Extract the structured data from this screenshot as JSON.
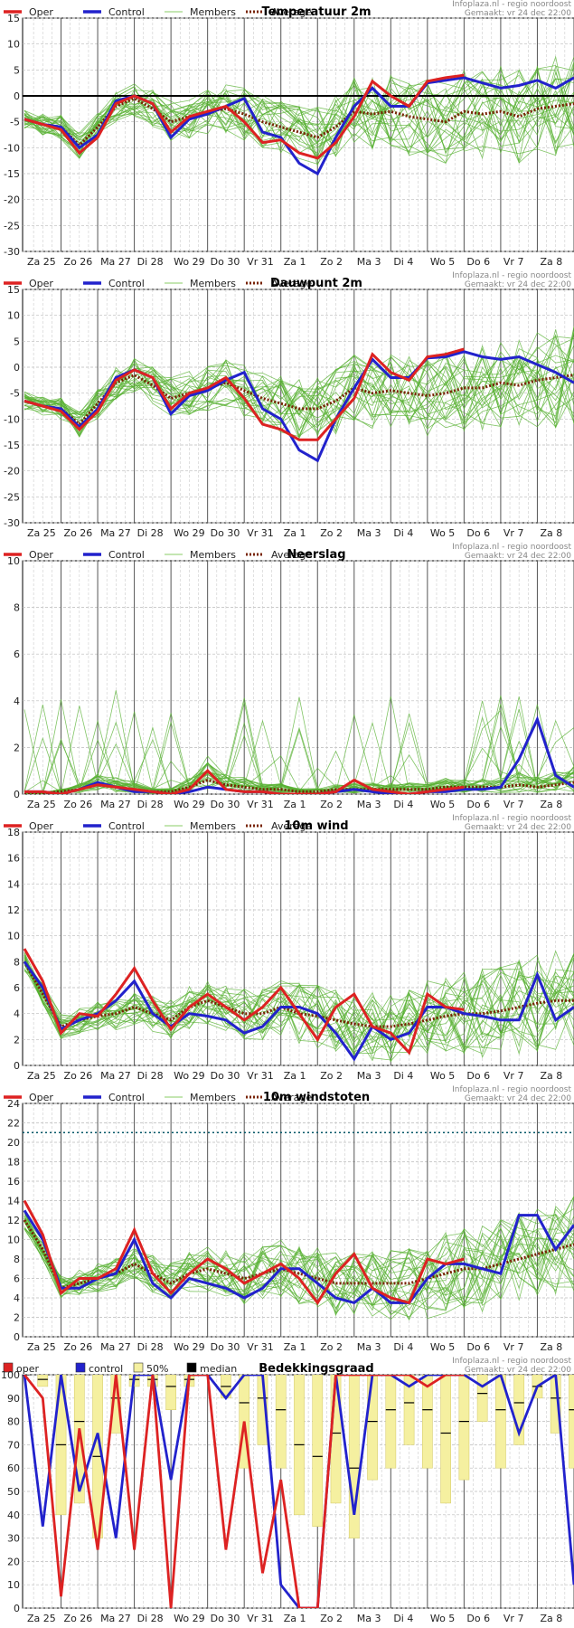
{
  "credits": {
    "source": "Infoplaza.nl - regio noordoost",
    "made": "Gemaakt: vr 24 dec 22:00"
  },
  "x_days": [
    "Za 25",
    "Zo 26",
    "Ma 27",
    "Di 28",
    "Wo 29",
    "Do 30",
    "Vr 31",
    "Za 1",
    "Zo 2",
    "Ma 3",
    "Di 4",
    "Wo 5",
    "Do 6",
    "Vr 7",
    "Za 8"
  ],
  "colors": {
    "oper": "#dd2222",
    "control": "#2222cc",
    "members": "#44aa22",
    "average": "#772200",
    "median": "#000000",
    "band": "#f5f0a0"
  },
  "legend_line": {
    "oper": "Oper",
    "control": "Control",
    "members": "Members",
    "average": "Average"
  },
  "legend_cloud": {
    "oper": "oper",
    "control": "control",
    "band": "50%",
    "median": "median"
  },
  "chart_data": [
    {
      "type": "line",
      "title": "Temperatuur 2m",
      "ylim": [
        -30,
        15
      ],
      "yticks": [
        15,
        10,
        5,
        0,
        -5,
        -10,
        -15,
        -20,
        -25,
        -30
      ],
      "zero_line": true,
      "grid": true,
      "x": [
        0,
        0.5,
        1,
        1.5,
        2,
        2.5,
        3,
        3.5,
        4,
        4.5,
        5,
        5.5,
        6,
        6.5,
        7,
        7.5,
        8,
        8.5,
        9,
        9.5,
        10,
        10.5,
        11,
        11.5,
        12,
        12.5,
        13,
        13.5,
        14,
        14.5,
        15
      ],
      "series": [
        {
          "name": "Oper",
          "values": [
            -4.5,
            -5.5,
            -6.5,
            -11,
            -8,
            -1.5,
            0,
            -1.5,
            -7,
            -4,
            -3,
            -2,
            -5,
            -9,
            -8.5,
            -11,
            -12,
            -9,
            -4,
            2.8,
            0,
            -2,
            2.8,
            3.5,
            4,
            null,
            null,
            null,
            null,
            null,
            null
          ]
        },
        {
          "name": "Control",
          "values": [
            -4.5,
            -5.5,
            -6,
            -10,
            -7.5,
            -1,
            0,
            -1.5,
            -8,
            -4.5,
            -3.5,
            -2,
            -0.5,
            -7,
            -8,
            -13,
            -15,
            -8,
            -2,
            1.5,
            -2,
            -2,
            2.5,
            3,
            3.5,
            2.5,
            1.5,
            2,
            3,
            1.5,
            3.5
          ]
        },
        {
          "name": "Average",
          "values": [
            -4.5,
            -5.5,
            -6,
            -9.5,
            -6,
            -2,
            -0.5,
            -2.5,
            -5,
            -4,
            -3,
            -2.5,
            -3.5,
            -5,
            -6,
            -7,
            -8,
            -6,
            -3,
            -3.5,
            -3,
            -4,
            -4.5,
            -5,
            -3,
            -3.5,
            -3,
            -4,
            -2.5,
            -2,
            -1.5
          ]
        }
      ]
    },
    {
      "type": "line",
      "title": "Dauwpunt 2m",
      "ylim": [
        -30,
        15
      ],
      "yticks": [
        15,
        10,
        5,
        0,
        -5,
        -10,
        -15,
        -20,
        -25,
        -30
      ],
      "zero_line": false,
      "grid": true,
      "x": [
        0,
        0.5,
        1,
        1.5,
        2,
        2.5,
        3,
        3.5,
        4,
        4.5,
        5,
        5.5,
        6,
        6.5,
        7,
        7.5,
        8,
        8.5,
        9,
        9.5,
        10,
        10.5,
        11,
        11.5,
        12,
        12.5,
        13,
        13.5,
        14,
        14.5,
        15
      ],
      "series": [
        {
          "name": "Oper",
          "values": [
            -6.5,
            -7.5,
            -8.5,
            -12,
            -8.5,
            -2.5,
            -0.5,
            -2,
            -8,
            -5,
            -4,
            -2,
            -6,
            -11,
            -12,
            -14,
            -14,
            -10,
            -6,
            2.5,
            -1,
            -2.5,
            2,
            2.5,
            3.5,
            null,
            null,
            null,
            null,
            null,
            null
          ]
        },
        {
          "name": "Control",
          "values": [
            -6.5,
            -7.5,
            -8,
            -11.5,
            -8,
            -2,
            -0.5,
            -2,
            -9,
            -5.5,
            -4.5,
            -2.5,
            -1,
            -8,
            -10,
            -16,
            -18,
            -10,
            -4,
            1.5,
            -2,
            -2,
            1.8,
            2,
            3,
            2,
            1.5,
            2,
            0.5,
            -1,
            -3
          ]
        },
        {
          "name": "Average",
          "values": [
            -6.5,
            -7.5,
            -8,
            -11,
            -7,
            -3,
            -1.5,
            -3.5,
            -6,
            -5,
            -4,
            -3,
            -4.5,
            -6,
            -7,
            -8,
            -8,
            -6.5,
            -4,
            -5,
            -4.5,
            -5,
            -5.5,
            -5,
            -4,
            -4,
            -3,
            -3.5,
            -2.5,
            -2,
            -1.5
          ]
        }
      ]
    },
    {
      "type": "line",
      "title": "Neerslag",
      "ylim": [
        0,
        10
      ],
      "yticks": [
        10,
        8,
        6,
        4,
        2,
        0
      ],
      "zero_line": false,
      "grid": true,
      "x": [
        0,
        0.5,
        1,
        1.5,
        2,
        2.5,
        3,
        3.5,
        4,
        4.5,
        5,
        5.5,
        6,
        6.5,
        7,
        7.5,
        8,
        8.5,
        9,
        9.5,
        10,
        10.5,
        11,
        11.5,
        12,
        12.5,
        13,
        13.5,
        14,
        14.5,
        15
      ],
      "series": [
        {
          "name": "Oper",
          "values": [
            0.1,
            0.1,
            0,
            0.2,
            0.4,
            0.3,
            0.2,
            0.1,
            0,
            0.2,
            1,
            0.2,
            0.1,
            0.1,
            0,
            0,
            0,
            0.1,
            0.6,
            0.2,
            0.1,
            0,
            0.1,
            0.2,
            0.3,
            null,
            null,
            null,
            null,
            null,
            null
          ]
        },
        {
          "name": "Control",
          "values": [
            0.1,
            0.1,
            0,
            0.2,
            0.5,
            0.3,
            0.1,
            0.1,
            0,
            0.1,
            0.3,
            0.2,
            0.1,
            0.1,
            0,
            0,
            0,
            0.1,
            0.2,
            0.1,
            0,
            0,
            0.1,
            0.1,
            0.2,
            0.2,
            0.3,
            1.5,
            3.2,
            0.8,
            0.3
          ]
        },
        {
          "name": "Average",
          "values": [
            0.05,
            0.05,
            0.1,
            0.2,
            0.4,
            0.3,
            0.2,
            0.1,
            0.1,
            0.3,
            0.6,
            0.4,
            0.3,
            0.2,
            0.2,
            0.1,
            0.1,
            0.2,
            0.2,
            0.2,
            0.2,
            0.2,
            0.2,
            0.3,
            0.3,
            0.3,
            0.3,
            0.4,
            0.3,
            0.4,
            0.5
          ]
        }
      ]
    },
    {
      "type": "line",
      "title": "10m wind",
      "ylim": [
        0,
        18
      ],
      "yticks": [
        18,
        16,
        14,
        12,
        10,
        8,
        6,
        4,
        2,
        0
      ],
      "zero_line": false,
      "grid": true,
      "x": [
        0,
        0.5,
        1,
        1.5,
        2,
        2.5,
        3,
        3.5,
        4,
        4.5,
        5,
        5.5,
        6,
        6.5,
        7,
        7.5,
        8,
        8.5,
        9,
        9.5,
        10,
        10.5,
        11,
        11.5,
        12,
        12.5,
        13,
        13.5,
        14,
        14.5,
        15
      ],
      "series": [
        {
          "name": "Oper",
          "values": [
            9,
            6.5,
            2.5,
            4,
            3.8,
            5.5,
            7.5,
            5,
            2.8,
            4.5,
            5.5,
            4.5,
            3.5,
            4.5,
            6,
            4,
            2,
            4.5,
            5.5,
            3,
            2.5,
            1,
            5.5,
            4.5,
            4.3,
            null,
            null,
            null,
            null,
            null,
            null
          ]
        },
        {
          "name": "Control",
          "values": [
            8,
            6,
            2.8,
            3.5,
            4,
            5,
            6.5,
            4,
            3,
            4,
            3.8,
            3.5,
            2.5,
            3,
            4.5,
            4.5,
            4,
            2.5,
            0.5,
            3,
            2,
            2.5,
            4.5,
            4.5,
            4,
            3.8,
            3.5,
            3.5,
            7,
            3.5,
            4.5
          ]
        },
        {
          "name": "Average",
          "values": [
            8,
            5.5,
            3,
            3.5,
            3.8,
            4,
            4.5,
            4,
            3.5,
            4.5,
            5,
            4.5,
            4,
            4,
            4.5,
            4,
            3.8,
            3.5,
            3.2,
            3,
            3,
            3.2,
            3.5,
            3.8,
            4,
            4,
            4.2,
            4.5,
            4.8,
            5,
            5
          ]
        }
      ]
    },
    {
      "type": "line",
      "title": "10m windstoten",
      "ylim": [
        0,
        24
      ],
      "yticks": [
        24,
        22,
        20,
        18,
        16,
        14,
        12,
        10,
        8,
        6,
        4,
        2,
        0
      ],
      "threshold": 21,
      "zero_line": false,
      "grid": true,
      "x": [
        0,
        0.5,
        1,
        1.5,
        2,
        2.5,
        3,
        3.5,
        4,
        4.5,
        5,
        5.5,
        6,
        6.5,
        7,
        7.5,
        8,
        8.5,
        9,
        9.5,
        10,
        10.5,
        11,
        11.5,
        12,
        12.5,
        13,
        13.5,
        14,
        14.5,
        15
      ],
      "series": [
        {
          "name": "Oper",
          "values": [
            14,
            10.5,
            4.5,
            6,
            6,
            7,
            11,
            6.5,
            4.5,
            6.5,
            8,
            7,
            5.5,
            6.5,
            7.5,
            6,
            3.5,
            6.5,
            8.5,
            5,
            4,
            3.5,
            8,
            7.5,
            8,
            null,
            null,
            null,
            null,
            null,
            null
          ]
        },
        {
          "name": "Control",
          "values": [
            13,
            10,
            5,
            5,
            6,
            6.5,
            10,
            5.5,
            4,
            6,
            5.5,
            5,
            4,
            5,
            7,
            7,
            5.5,
            4,
            3.5,
            5,
            3.5,
            3.5,
            6,
            7.5,
            7.5,
            7,
            6.5,
            12.5,
            12.5,
            9,
            11.5
          ]
        },
        {
          "name": "Average",
          "values": [
            12,
            9,
            5,
            5.5,
            6,
            6.5,
            7.5,
            6.5,
            5.5,
            6.5,
            7,
            6.5,
            6,
            6.5,
            7,
            6.5,
            6,
            5.5,
            5.5,
            5.5,
            5.5,
            5.5,
            6,
            6.5,
            7,
            7,
            7.5,
            8,
            8.5,
            9,
            9.5
          ]
        }
      ]
    },
    {
      "type": "bar",
      "title": "Bedekkingsgraad",
      "ylim": [
        0,
        100
      ],
      "yticks": [
        100,
        90,
        80,
        70,
        60,
        50,
        40,
        30,
        20,
        10,
        0
      ],
      "zero_line": false,
      "grid": true,
      "x": [
        0,
        0.5,
        1,
        1.5,
        2,
        2.5,
        3,
        3.5,
        4,
        4.5,
        5,
        5.5,
        6,
        6.5,
        7,
        7.5,
        8,
        8.5,
        9,
        9.5,
        10,
        10.5,
        11,
        11.5,
        12,
        12.5,
        13,
        13.5,
        14,
        14.5,
        15
      ],
      "series": [
        {
          "name": "oper",
          "values": [
            100,
            90,
            5,
            77,
            25,
            100,
            25,
            100,
            0,
            100,
            100,
            25,
            80,
            15,
            55,
            0,
            0,
            100,
            100,
            100,
            100,
            100,
            95,
            100,
            100,
            null,
            null,
            null,
            null,
            null,
            null
          ]
        },
        {
          "name": "control",
          "values": [
            100,
            35,
            100,
            50,
            75,
            30,
            100,
            100,
            55,
            100,
            100,
            90,
            100,
            100,
            10,
            0,
            0,
            100,
            40,
            100,
            100,
            95,
            100,
            100,
            100,
            95,
            100,
            75,
            95,
            100,
            10
          ]
        },
        {
          "name": "50%",
          "values": [
            100,
            95,
            40,
            45,
            30,
            75,
            95,
            95,
            85,
            95,
            100,
            90,
            60,
            70,
            60,
            40,
            35,
            45,
            30,
            55,
            60,
            70,
            60,
            45,
            55,
            80,
            60,
            70,
            90,
            75,
            60
          ]
        },
        {
          "name": "median",
          "values": [
            100,
            98,
            70,
            80,
            65,
            90,
            98,
            98,
            95,
            98,
            100,
            95,
            88,
            90,
            85,
            70,
            65,
            75,
            60,
            80,
            85,
            88,
            85,
            75,
            80,
            92,
            85,
            88,
            95,
            90,
            85
          ]
        }
      ]
    }
  ]
}
